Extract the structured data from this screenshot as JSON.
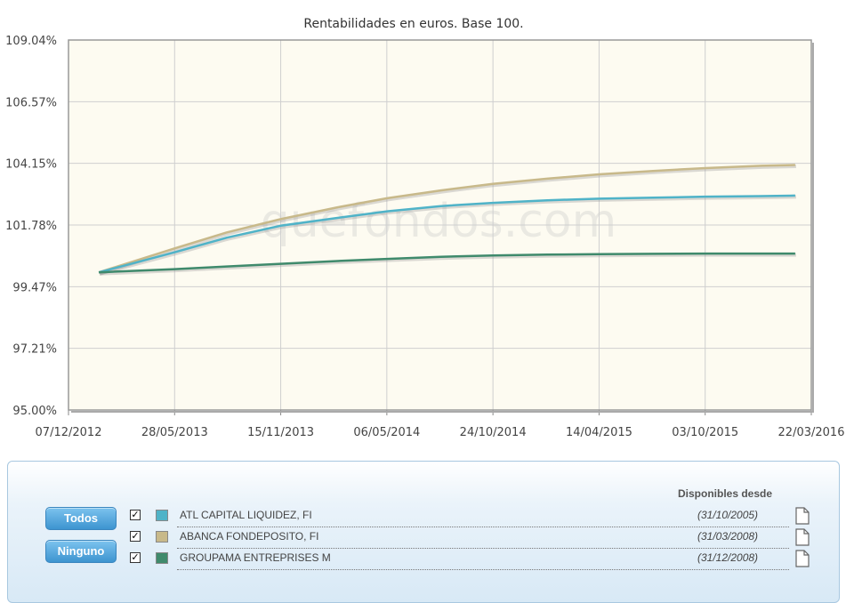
{
  "chart_data": {
    "type": "line",
    "title": "Rentabilidades en euros. Base 100.",
    "watermark": "quefondos.com",
    "y_ticks": [
      "109.04%",
      "106.57%",
      "104.15%",
      "101.78%",
      "99.47%",
      "97.21%",
      "95.00%"
    ],
    "x_ticks": [
      "07/12/2012",
      "28/05/2013",
      "15/11/2013",
      "06/05/2014",
      "24/10/2014",
      "14/04/2015",
      "03/10/2015",
      "22/03/2016"
    ],
    "ylim": [
      95.0,
      109.04
    ],
    "y_scale": "log",
    "xlim": [
      "2012-12-07",
      "2016-03-22"
    ],
    "grid": true,
    "plot_background": "#fdfbf1",
    "x": [
      "2013-01-25",
      "2013-05-28",
      "2013-08-20",
      "2013-11-15",
      "2014-02-15",
      "2014-05-06",
      "2014-08-01",
      "2014-10-24",
      "2015-01-20",
      "2015-04-14",
      "2015-07-10",
      "2015-10-03",
      "2016-01-01",
      "2016-02-25"
    ],
    "series": [
      {
        "name": "ABANCA FONDEPOSITO, FI",
        "color": "#c8b98a",
        "values": [
          100.0,
          100.9,
          101.5,
          102.0,
          102.45,
          102.8,
          103.1,
          103.35,
          103.55,
          103.72,
          103.85,
          103.96,
          104.05,
          104.08
        ]
      },
      {
        "name": "ATL CAPITAL LIQUIDEZ, FI",
        "color": "#4fb3c8",
        "values": [
          100.0,
          100.75,
          101.3,
          101.75,
          102.05,
          102.3,
          102.5,
          102.62,
          102.72,
          102.78,
          102.82,
          102.86,
          102.88,
          102.9
        ]
      },
      {
        "name": "GROUPAMA ENTREPRISES M",
        "color": "#3f8a6c",
        "values": [
          100.0,
          100.12,
          100.22,
          100.32,
          100.42,
          100.5,
          100.58,
          100.63,
          100.66,
          100.68,
          100.69,
          100.7,
          100.7,
          100.7
        ]
      }
    ]
  },
  "legend": {
    "buttons": {
      "all": "Todos",
      "none": "Ninguno"
    },
    "header": "Disponibles desde",
    "items": [
      {
        "name": "ATL CAPITAL LIQUIDEZ, FI",
        "date": "(31/10/2005)",
        "color": "#4fb3c8",
        "checked": true,
        "check_mark": "✓"
      },
      {
        "name": "ABANCA FONDEPOSITO, FI",
        "date": "(31/03/2008)",
        "color": "#c8b98a",
        "checked": true,
        "check_mark": "✓"
      },
      {
        "name": "GROUPAMA ENTREPRISES M",
        "date": "(31/12/2008)",
        "color": "#3f8a6c",
        "checked": true,
        "check_mark": "✓"
      }
    ]
  }
}
